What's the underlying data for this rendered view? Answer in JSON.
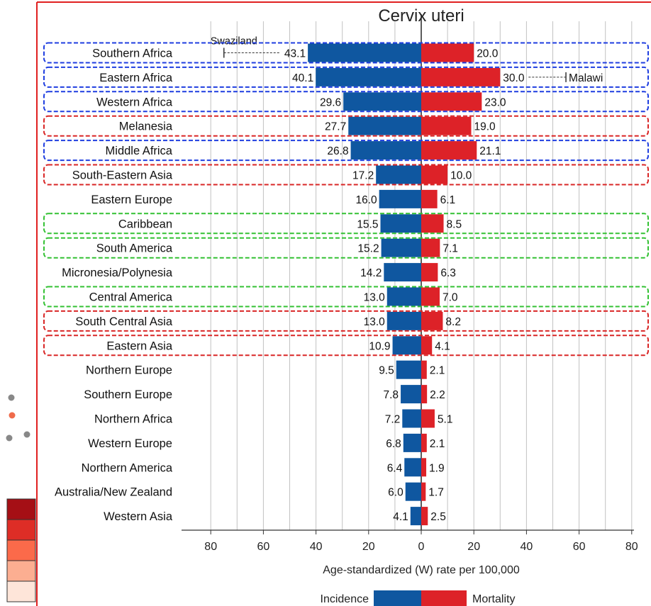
{
  "chart_data": {
    "type": "bar",
    "title": "Cervix uteri",
    "xlabel": "Age-standardized (W) rate per 100,000",
    "xticks": [
      "80",
      "60",
      "40",
      "20",
      "0",
      "20",
      "40",
      "60",
      "80"
    ],
    "xlim": [
      -80,
      80
    ],
    "grid": true,
    "legend": {
      "placement": "bottom",
      "incidence_label": "Incidence",
      "mortality_label": "Mortality"
    },
    "colors": {
      "incidence": "#0f57a0",
      "mortality": "#dd2228",
      "box_blue": "#1f3ee0",
      "box_red": "#d92626",
      "box_green": "#33c133",
      "frame": "#e02020",
      "grid": "#c2c2c2"
    },
    "categories": [
      "Southern Africa",
      "Eastern Africa",
      "Western Africa",
      "Melanesia",
      "Middle Africa",
      "South-Eastern Asia",
      "Eastern Europe",
      "Caribbean",
      "South America",
      "Micronesia/Polynesia",
      "Central America",
      "South Central Asia",
      "Eastern Asia",
      "Northern Europe",
      "Southern Europe",
      "Northern Africa",
      "Western Europe",
      "Northern America",
      "Australia/New Zealand",
      "Western Asia"
    ],
    "highlight": [
      "blue",
      "blue",
      "blue",
      "red",
      "blue",
      "red",
      "none",
      "green",
      "green",
      "none",
      "green",
      "red",
      "red",
      "none",
      "none",
      "none",
      "none",
      "none",
      "none",
      "none"
    ],
    "series": [
      {
        "name": "Incidence",
        "values": [
          43.1,
          40.1,
          29.6,
          27.7,
          26.8,
          17.2,
          16.0,
          15.5,
          15.2,
          14.2,
          13.0,
          13.0,
          10.9,
          9.5,
          7.8,
          7.2,
          6.8,
          6.4,
          6.0,
          4.1
        ],
        "labels": [
          "43.1",
          "40.1",
          "29.6",
          "27.7",
          "26.8",
          "17.2",
          "16.0",
          "15.5",
          "15.2",
          "14.2",
          "13.0",
          "13.0",
          "10.9",
          "9.5",
          "7.8",
          "7.2",
          "6.8",
          "6.4",
          "6.0",
          "4.1"
        ]
      },
      {
        "name": "Mortality",
        "values": [
          20.0,
          30.0,
          23.0,
          19.0,
          21.1,
          10.0,
          6.1,
          8.5,
          7.1,
          6.3,
          7.0,
          8.2,
          4.1,
          2.1,
          2.2,
          5.1,
          2.1,
          1.9,
          1.7,
          2.5
        ],
        "labels": [
          "20.0",
          "30.0",
          "23.0",
          "19.0",
          "21.1",
          "10.0",
          "6.1",
          "8.5",
          "7.1",
          "6.3",
          "7.0",
          "8.2",
          "4.1",
          "2.1",
          "2.2",
          "5.1",
          "2.1",
          "1.9",
          "1.7",
          "2.5"
        ]
      }
    ],
    "ranges": [
      {
        "row": 0,
        "side": "incidence",
        "max": 75,
        "label": "Swaziland"
      },
      {
        "row": 1,
        "side": "mortality",
        "max": 55,
        "label": "Malawi"
      }
    ]
  },
  "side_legend": {
    "dot_colors": [
      "#888888",
      "#ef6b4b",
      "#888888",
      "#888888"
    ],
    "scale_colors": [
      "#a50f15",
      "#de2d26",
      "#fb6a4a",
      "#fcae91",
      "#fee5d9"
    ]
  }
}
